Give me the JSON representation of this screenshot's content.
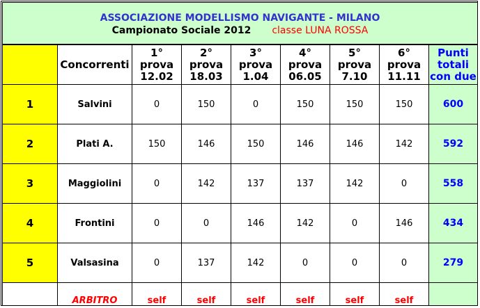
{
  "header": {
    "title": "ASSOCIAZIONE MODELLISMO NAVIGANTE - MILANO",
    "subtitle": "Campionato Sociale 2012",
    "class": "classe LUNA ROSSA"
  },
  "columns": {
    "competitors": "Concorrenti",
    "rounds": [
      [
        "1°",
        "prova",
        "12.02"
      ],
      [
        "2°",
        "prova",
        "18.03"
      ],
      [
        "3°",
        "prova",
        "1.04"
      ],
      [
        "4°",
        "prova",
        "06.05"
      ],
      [
        "5°",
        "prova",
        "7.10"
      ],
      [
        "6°",
        "prova",
        "11.11"
      ]
    ],
    "total": [
      "Punti",
      "totali",
      "con due"
    ]
  },
  "rows": [
    {
      "pos": "1",
      "name": "Salvini",
      "scores": [
        "0",
        "150",
        "0",
        "150",
        "150",
        "150"
      ],
      "total": "600"
    },
    {
      "pos": "2",
      "name": "Plati A.",
      "scores": [
        "150",
        "146",
        "150",
        "146",
        "146",
        "142"
      ],
      "total": "592"
    },
    {
      "pos": "3",
      "name": "Maggiolini",
      "scores": [
        "0",
        "142",
        "137",
        "137",
        "142",
        "0"
      ],
      "total": "558"
    },
    {
      "pos": "4",
      "name": "Frontini",
      "scores": [
        "0",
        "0",
        "146",
        "142",
        "0",
        "146"
      ],
      "total": "434"
    },
    {
      "pos": "5",
      "name": "Valsasina",
      "scores": [
        "0",
        "137",
        "142",
        "0",
        "0",
        "0"
      ],
      "total": "279"
    }
  ],
  "referee": {
    "label": "ARBITRO",
    "values": [
      "self",
      "self",
      "self",
      "self",
      "self",
      "self"
    ]
  },
  "colors": {
    "header_bg": "#ccffcc",
    "position_bg": "#ffff00",
    "title": "#3333cc",
    "total": "#0000ff",
    "referee": "#ff0000"
  }
}
